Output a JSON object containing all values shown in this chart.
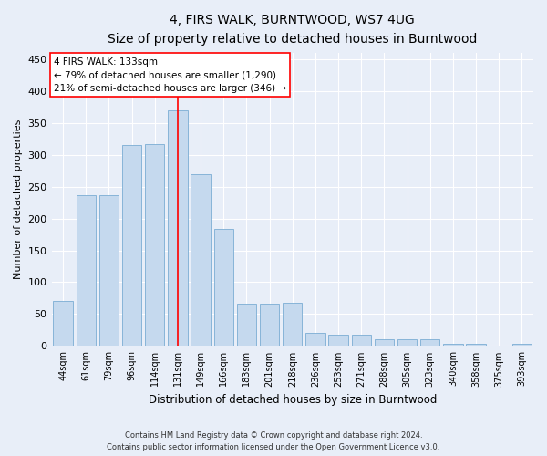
{
  "title": "4, FIRS WALK, BURNTWOOD, WS7 4UG",
  "subtitle": "Size of property relative to detached houses in Burntwood",
  "xlabel": "Distribution of detached houses by size in Burntwood",
  "ylabel": "Number of detached properties",
  "categories": [
    "44sqm",
    "61sqm",
    "79sqm",
    "96sqm",
    "114sqm",
    "131sqm",
    "149sqm",
    "166sqm",
    "183sqm",
    "201sqm",
    "218sqm",
    "236sqm",
    "253sqm",
    "271sqm",
    "288sqm",
    "305sqm",
    "323sqm",
    "340sqm",
    "358sqm",
    "375sqm",
    "393sqm"
  ],
  "values": [
    70,
    236,
    236,
    315,
    317,
    370,
    270,
    183,
    67,
    67,
    68,
    20,
    18,
    18,
    10,
    10,
    10,
    4,
    4,
    0,
    4
  ],
  "bar_color": "#c5d9ee",
  "bar_edge_color": "#7aadd4",
  "highlight_line_index": 5,
  "highlight_label": "4 FIRS WALK: 133sqm",
  "annotation_line1": "← 79% of detached houses are smaller (1,290)",
  "annotation_line2": "21% of semi-detached houses are larger (346) →",
  "ylim": [
    0,
    460
  ],
  "yticks": [
    0,
    50,
    100,
    150,
    200,
    250,
    300,
    350,
    400,
    450
  ],
  "footer_line1": "Contains HM Land Registry data © Crown copyright and database right 2024.",
  "footer_line2": "Contains public sector information licensed under the Open Government Licence v3.0.",
  "bg_color": "#e8eef8",
  "grid_color": "#ffffff"
}
